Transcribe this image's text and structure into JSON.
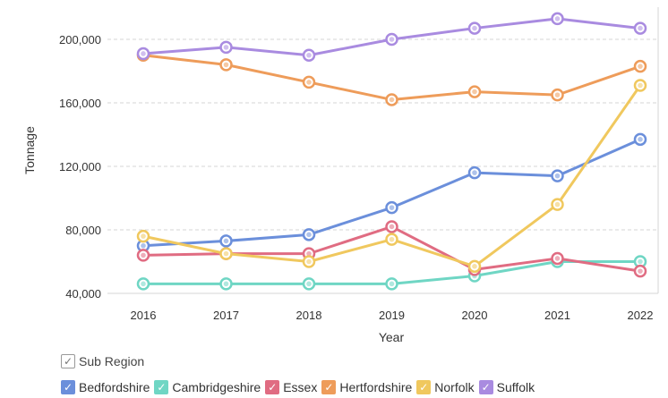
{
  "chart_data": {
    "type": "line",
    "xlabel": "Year",
    "ylabel": "Tonnage",
    "x": [
      "2016",
      "2017",
      "2018",
      "2019",
      "2020",
      "2021",
      "2022"
    ],
    "ylim": [
      40000,
      220000
    ],
    "yticks": [
      40000,
      80000,
      120000,
      160000,
      200000
    ],
    "ytick_labels": [
      "40,000",
      "80,000",
      "120,000",
      "160,000",
      "200,000"
    ],
    "grid": "horizontal dashed",
    "series": [
      {
        "name": "Bedfordshire",
        "color": "#6b8fdb",
        "values": [
          70000,
          73000,
          77000,
          94000,
          116000,
          114000,
          137000
        ]
      },
      {
        "name": "Cambridgeshire",
        "color": "#6fd6c4",
        "values": [
          46000,
          46000,
          46000,
          46000,
          51000,
          60000,
          60000
        ]
      },
      {
        "name": "Essex",
        "color": "#e06c82",
        "values": [
          64000,
          65000,
          65000,
          82000,
          55000,
          62000,
          54000
        ]
      },
      {
        "name": "Hertfordshire",
        "color": "#ee9c5a",
        "values": [
          190000,
          184000,
          173000,
          162000,
          167000,
          165000,
          183000
        ]
      },
      {
        "name": "Norfolk",
        "color": "#f0c85e",
        "values": [
          76000,
          65000,
          60000,
          74000,
          57000,
          96000,
          171000
        ]
      },
      {
        "name": "Suffolk",
        "color": "#a98be0",
        "values": [
          191000,
          195000,
          190000,
          200000,
          207000,
          213000,
          207000
        ]
      }
    ]
  },
  "legend": {
    "title": "Sub Region",
    "title_check": "✓",
    "check": "✓"
  }
}
